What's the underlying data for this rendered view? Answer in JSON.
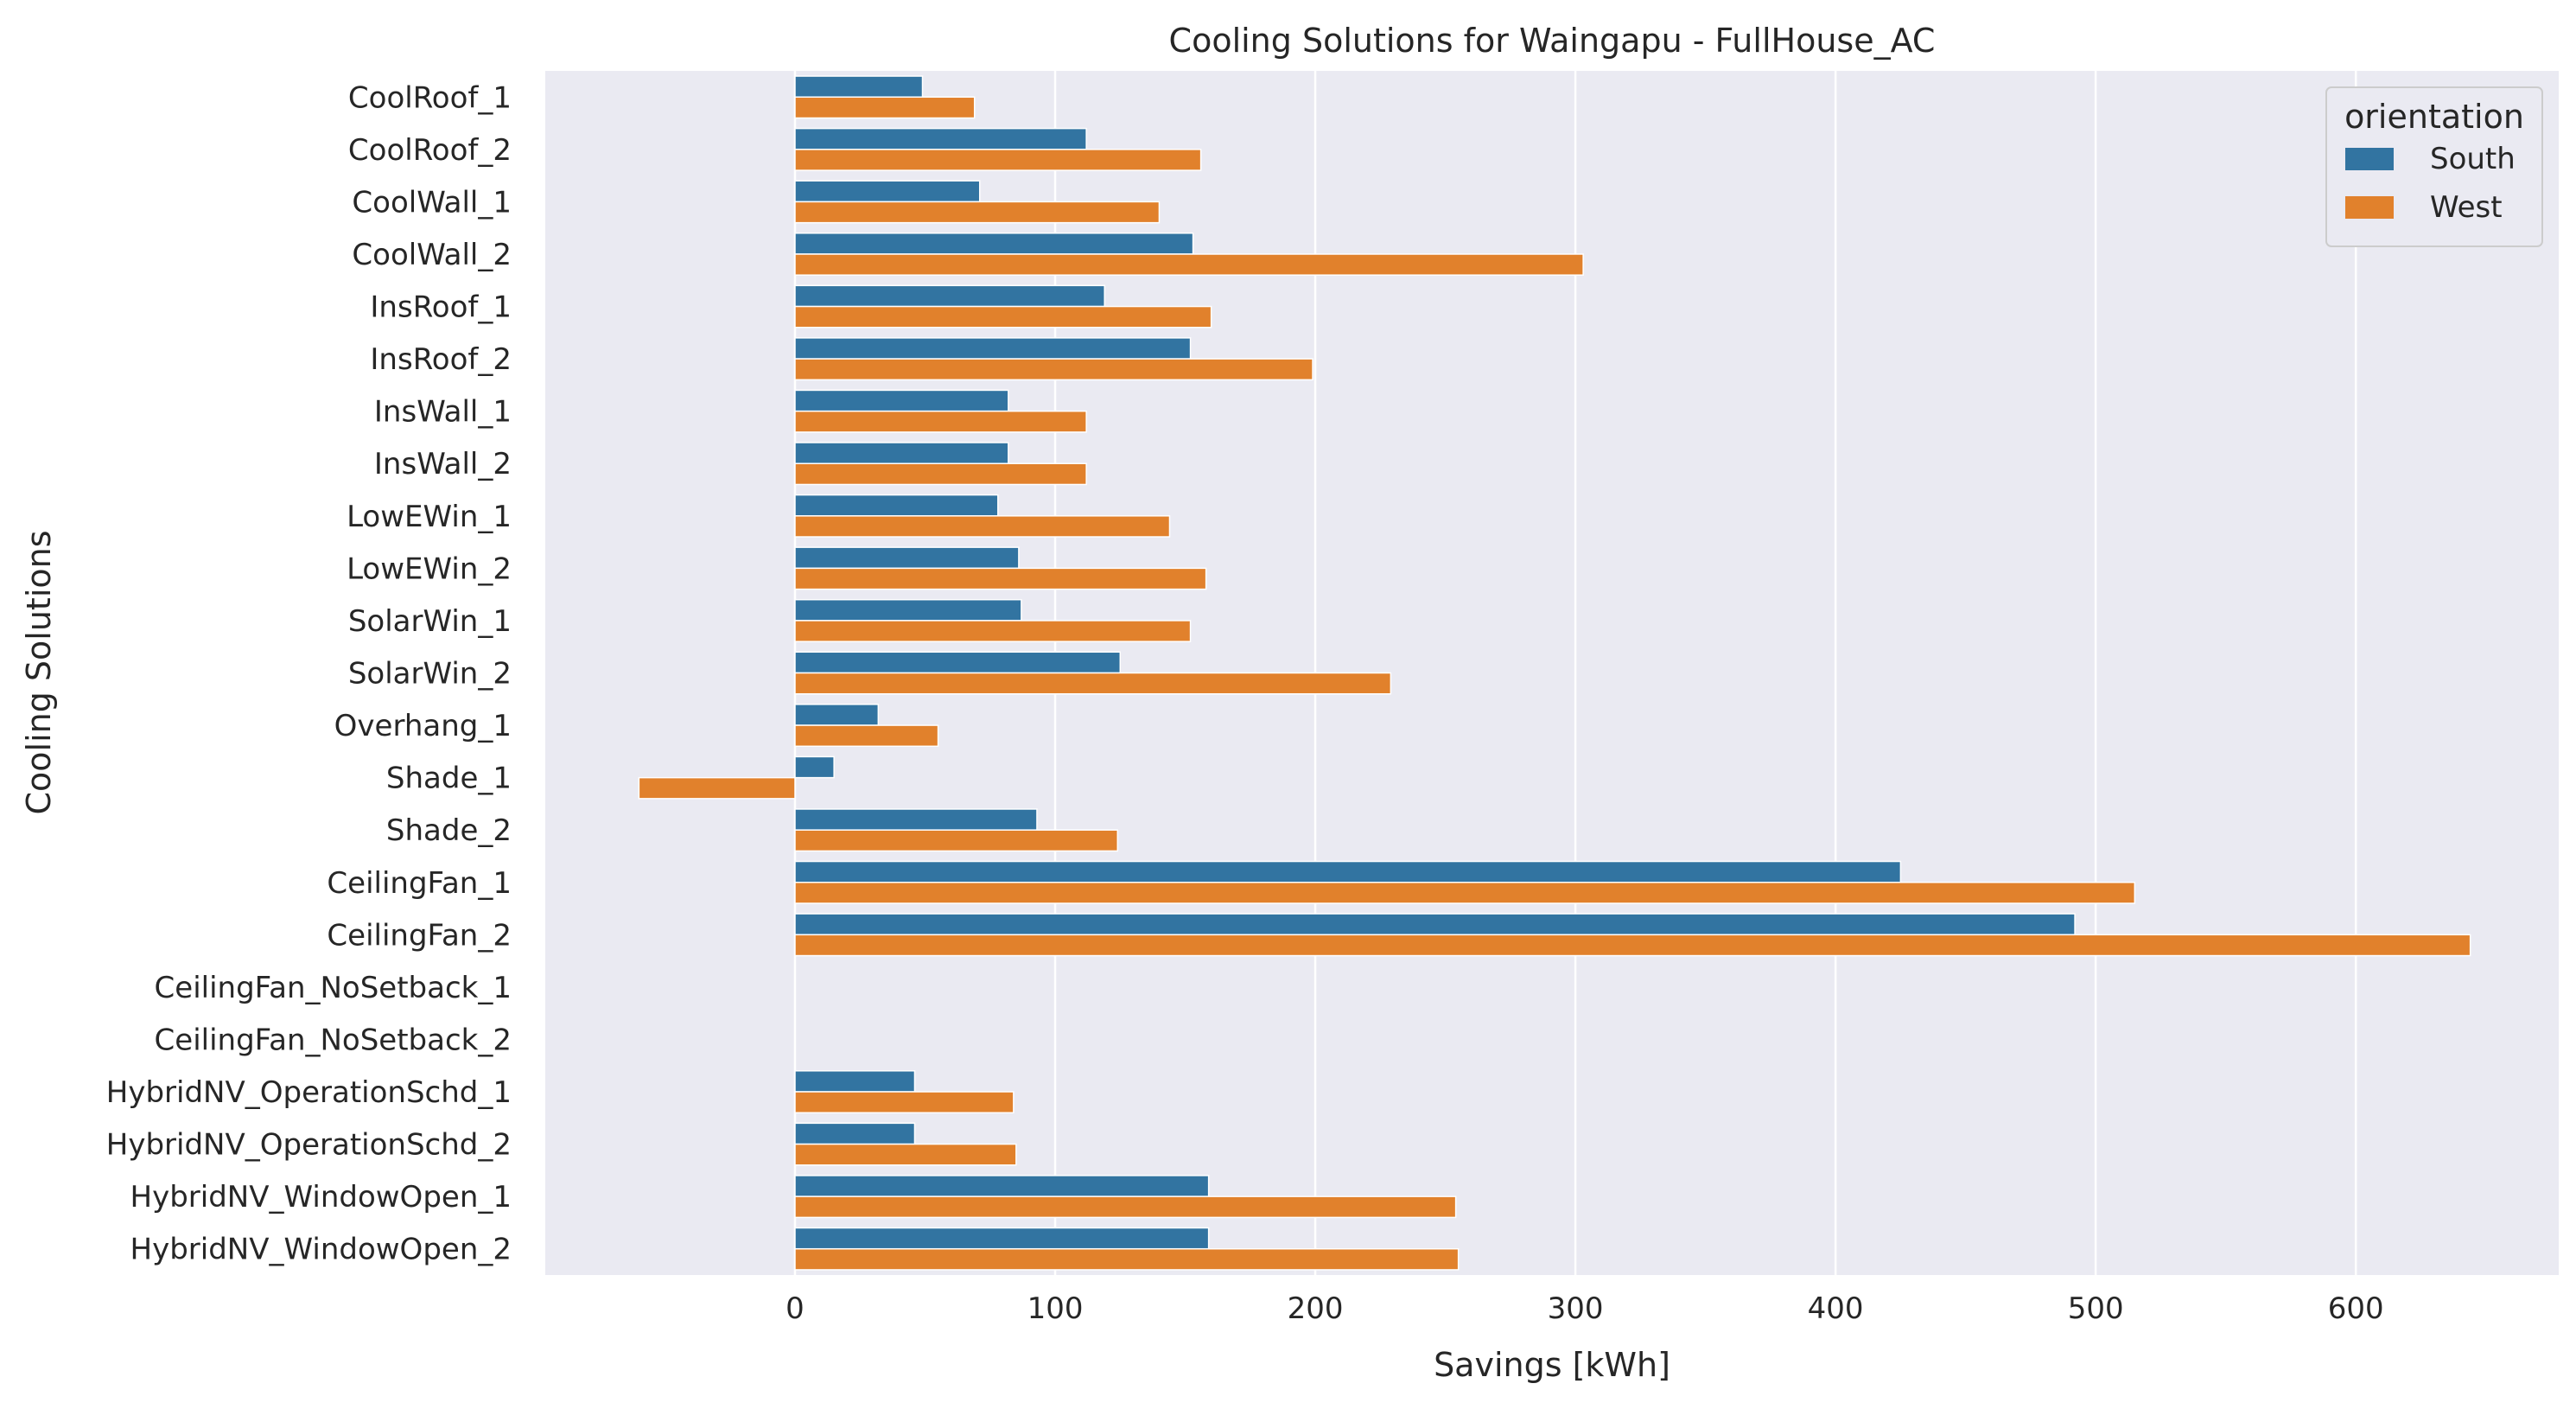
{
  "chart_data": {
    "type": "bar",
    "orientation": "horizontal",
    "title": "Cooling Solutions for Waingapu - FullHouse_AC",
    "xlabel": "Savings [kWh]",
    "ylabel": "Cooling Solutions",
    "xlim": [
      -96,
      678
    ],
    "xticks": [
      0,
      100,
      200,
      300,
      400,
      500,
      600
    ],
    "grid": true,
    "legend": {
      "title": "orientation",
      "placement": "top-right"
    },
    "categories": [
      "CoolRoof_1",
      "CoolRoof_2",
      "CoolWall_1",
      "CoolWall_2",
      "InsRoof_1",
      "InsRoof_2",
      "InsWall_1",
      "InsWall_2",
      "LowEWin_1",
      "LowEWin_2",
      "SolarWin_1",
      "SolarWin_2",
      "Overhang_1",
      "Shade_1",
      "Shade_2",
      "CeilingFan_1",
      "CeilingFan_2",
      "CeilingFan_NoSetback_1",
      "CeilingFan_NoSetback_2",
      "HybridNV_OperationSchd_1",
      "HybridNV_OperationSchd_2",
      "HybridNV_WindowOpen_1",
      "HybridNV_WindowOpen_2"
    ],
    "series": [
      {
        "name": "South",
        "color": "#3274a1",
        "values": [
          49,
          112,
          71,
          153,
          119,
          152,
          82,
          82,
          78,
          86,
          87,
          125,
          32,
          15,
          93,
          425,
          492,
          0,
          0,
          46,
          46,
          159,
          159
        ]
      },
      {
        "name": "West",
        "color": "#e1812c",
        "values": [
          69,
          156,
          140,
          303,
          160,
          199,
          112,
          112,
          144,
          158,
          152,
          229,
          55,
          -60,
          124,
          515,
          644,
          0,
          0,
          84,
          85,
          254,
          255
        ]
      }
    ]
  }
}
